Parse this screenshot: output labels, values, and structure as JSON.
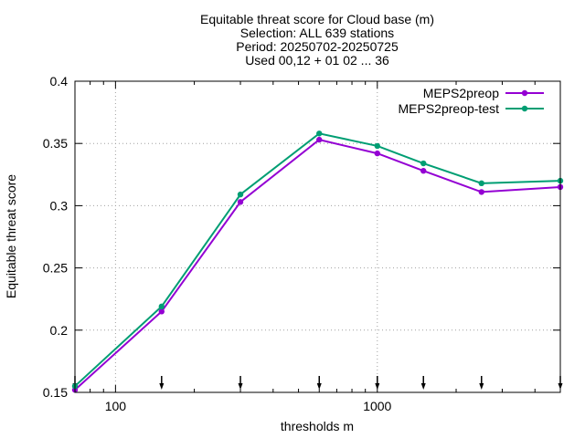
{
  "chart_data": {
    "type": "line",
    "title_lines": [
      "Equitable threat score  for Cloud base (m)",
      "Selection: ALL    639 stations",
      "Period: 20250702-20250725",
      "Used 00,12 + 01 02 ... 36"
    ],
    "xlabel": "thresholds m",
    "ylabel": "Equitable threat score",
    "x_scale": "log",
    "xlim": [
      70,
      5000
    ],
    "ylim": [
      0.15,
      0.4
    ],
    "x_major_ticks": [
      {
        "value": 100,
        "label": "100"
      },
      {
        "value": 1000,
        "label": "1000"
      }
    ],
    "y_ticks": [
      {
        "value": 0.15,
        "label": "0.15"
      },
      {
        "value": 0.2,
        "label": "0.2"
      },
      {
        "value": 0.25,
        "label": "0.25"
      },
      {
        "value": 0.3,
        "label": "0.3"
      },
      {
        "value": 0.35,
        "label": "0.35"
      },
      {
        "value": 0.4,
        "label": "0.4"
      }
    ],
    "grid": true,
    "legend_position": "top-right",
    "threshold_markers": [
      70,
      150,
      300,
      600,
      1000,
      1500,
      2500,
      5000
    ],
    "series": [
      {
        "name": "MEPS2preop",
        "color": "#9400d3",
        "x": [
          70,
          150,
          300,
          600,
          1000,
          1500,
          2500,
          5000
        ],
        "y": [
          0.152,
          0.215,
          0.303,
          0.353,
          0.342,
          0.328,
          0.311,
          0.315
        ]
      },
      {
        "name": "MEPS2preop-test",
        "color": "#009e73",
        "x": [
          70,
          150,
          300,
          600,
          1000,
          1500,
          2500,
          5000
        ],
        "y": [
          0.155,
          0.219,
          0.309,
          0.358,
          0.348,
          0.334,
          0.318,
          0.32
        ]
      }
    ]
  }
}
